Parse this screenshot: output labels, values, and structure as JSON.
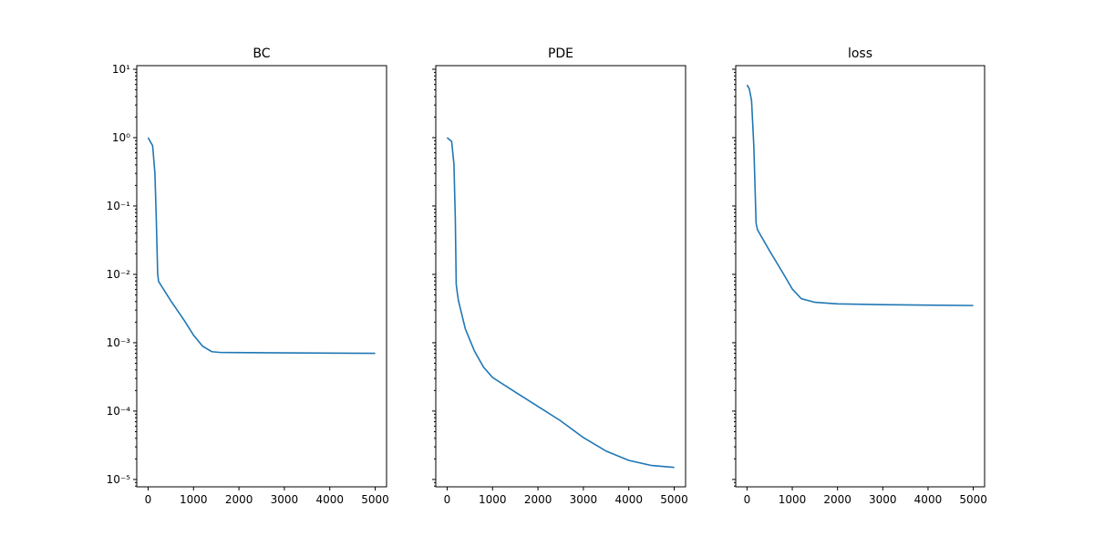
{
  "chart_data": [
    {
      "type": "line",
      "title": "BC",
      "log_y": true,
      "color": "#1f77b4",
      "x": [
        0,
        100,
        150,
        180,
        210,
        230,
        500,
        800,
        1000,
        1200,
        1400,
        1600,
        3000,
        5000
      ],
      "values": [
        1.0,
        0.76,
        0.3,
        0.065,
        0.0103,
        0.0079,
        0.0041,
        0.0021,
        0.00129,
        0.00089,
        0.00074,
        0.00072,
        0.00071,
        0.0007
      ],
      "xlim": [
        -250,
        5250
      ],
      "xticks": [
        0,
        1000,
        2000,
        3000,
        4000,
        5000
      ],
      "ylim": [
        7.8e-06,
        11.3
      ],
      "yticks": [
        {
          "value": 10,
          "label": "10¹"
        },
        {
          "value": 1,
          "label": "10⁰"
        },
        {
          "value": 0.1,
          "label": "10⁻¹"
        },
        {
          "value": 0.01,
          "label": "10⁻²"
        },
        {
          "value": 0.001,
          "label": "10⁻³"
        },
        {
          "value": 0.0001,
          "label": "10⁻⁴"
        },
        {
          "value": 1e-05,
          "label": "10⁻⁵"
        }
      ]
    },
    {
      "type": "line",
      "title": "PDE",
      "log_y": true,
      "color": "#1f77b4",
      "x": [
        0,
        100,
        150,
        180,
        200,
        220,
        250,
        400,
        600,
        800,
        1000,
        1500,
        2000,
        2500,
        3000,
        3500,
        4000,
        4500,
        5000
      ],
      "values": [
        1.0,
        0.88,
        0.41,
        0.065,
        0.0072,
        0.0056,
        0.0041,
        0.0016,
        0.00076,
        0.00044,
        0.00031,
        0.00019,
        0.000117,
        7.2e-05,
        4.1e-05,
        2.6e-05,
        1.9e-05,
        1.6e-05,
        1.5e-05
      ],
      "xlim": [
        -250,
        5250
      ],
      "xticks": [
        0,
        1000,
        2000,
        3000,
        4000,
        5000
      ],
      "ylim": [
        7.8e-06,
        11.3
      ]
    },
    {
      "type": "line",
      "title": "loss",
      "log_y": true,
      "color": "#1f77b4",
      "x": [
        0,
        50,
        100,
        150,
        180,
        200,
        230,
        500,
        800,
        1000,
        1200,
        1500,
        2000,
        3000,
        5000
      ],
      "values": [
        5.9,
        5.2,
        3.5,
        0.76,
        0.16,
        0.056,
        0.045,
        0.022,
        0.0103,
        0.0061,
        0.0044,
        0.0039,
        0.0037,
        0.0036,
        0.0035
      ],
      "xlim": [
        -250,
        5250
      ],
      "xticks": [
        0,
        1000,
        2000,
        3000,
        4000,
        5000
      ],
      "ylim": [
        7.8e-06,
        11.3
      ]
    }
  ]
}
